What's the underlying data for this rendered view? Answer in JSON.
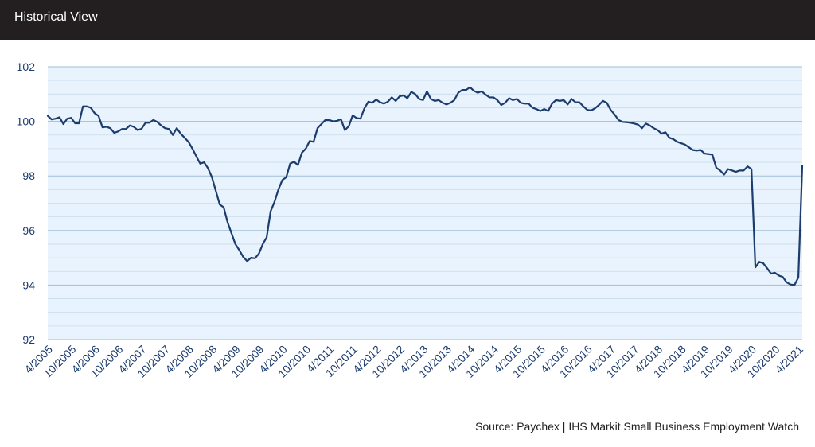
{
  "header": {
    "title": "Historical View"
  },
  "source": "Source: Paychex | IHS Markit Small Business Employment Watch",
  "colors": {
    "line": "#1c3c6e",
    "plot_bg": "#e9f3fd",
    "grid": "#a9c6db",
    "header_bg": "#231f20",
    "tick_text": "#1c3c6e"
  },
  "chart_data": {
    "type": "line",
    "title": "",
    "xlabel": "",
    "ylabel": "",
    "ylim": [
      92,
      102
    ],
    "yticks": [
      92,
      94,
      96,
      98,
      100,
      102
    ],
    "xtick_labels": [
      "4/2005",
      "10/2005",
      "4/2006",
      "10/2006",
      "4/2007",
      "10/2007",
      "4/2008",
      "10/2008",
      "4/2009",
      "10/2009",
      "4/2010",
      "10/2010",
      "4/2011",
      "10/2011",
      "4/2012",
      "10/2012",
      "4/2013",
      "10/2013",
      "4/2014",
      "10/2014",
      "4/2015",
      "10/2015",
      "4/2016",
      "10/2016",
      "4/2017",
      "10/2017",
      "4/2018",
      "10/2018",
      "4/2019",
      "10/2019",
      "4/2020",
      "10/2020",
      "4/2021"
    ],
    "grid": true,
    "x_start": "4/2005",
    "x_frequency": "monthly",
    "series": [
      {
        "values": [
          100.2,
          100.07,
          100.1,
          100.15,
          99.9,
          100.1,
          100.13,
          99.93,
          99.93,
          100.55,
          100.55,
          100.5,
          100.3,
          100.2,
          99.78,
          99.8,
          99.75,
          99.58,
          99.63,
          99.72,
          99.72,
          99.85,
          99.8,
          99.68,
          99.73,
          99.95,
          99.95,
          100.05,
          99.98,
          99.85,
          99.75,
          99.72,
          99.5,
          99.75,
          99.55,
          99.4,
          99.25,
          99.0,
          98.72,
          98.45,
          98.5,
          98.28,
          97.95,
          97.45,
          96.95,
          96.85,
          96.3,
          95.9,
          95.5,
          95.28,
          95.03,
          94.88,
          95.0,
          94.98,
          95.15,
          95.5,
          95.75,
          96.7,
          97.05,
          97.5,
          97.85,
          97.95,
          98.45,
          98.52,
          98.4,
          98.85,
          99.0,
          99.28,
          99.25,
          99.75,
          99.9,
          100.05,
          100.05,
          100.0,
          100.02,
          100.08,
          99.68,
          99.82,
          100.22,
          100.12,
          100.1,
          100.48,
          100.72,
          100.68,
          100.8,
          100.7,
          100.65,
          100.72,
          100.88,
          100.75,
          100.92,
          100.95,
          100.85,
          101.08,
          101.0,
          100.82,
          100.78,
          101.1,
          100.82,
          100.75,
          100.78,
          100.68,
          100.62,
          100.68,
          100.78,
          101.05,
          101.15,
          101.15,
          101.25,
          101.12,
          101.05,
          101.1,
          100.98,
          100.88,
          100.88,
          100.78,
          100.6,
          100.68,
          100.85,
          100.78,
          100.82,
          100.68,
          100.65,
          100.65,
          100.5,
          100.45,
          100.38,
          100.45,
          100.38,
          100.65,
          100.78,
          100.75,
          100.78,
          100.62,
          100.82,
          100.7,
          100.7,
          100.55,
          100.42,
          100.4,
          100.48,
          100.6,
          100.75,
          100.68,
          100.42,
          100.25,
          100.05,
          99.98,
          99.97,
          99.95,
          99.92,
          99.88,
          99.75,
          99.92,
          99.85,
          99.75,
          99.68,
          99.55,
          99.6,
          99.4,
          99.35,
          99.25,
          99.2,
          99.15,
          99.05,
          98.95,
          98.93,
          98.95,
          98.82,
          98.8,
          98.78,
          98.3,
          98.2,
          98.05,
          98.25,
          98.2,
          98.15,
          98.2,
          98.2,
          98.35,
          98.25,
          94.65,
          94.85,
          94.8,
          94.62,
          94.42,
          94.45,
          94.35,
          94.3,
          94.1,
          94.02,
          94.0,
          94.28,
          98.38
        ]
      }
    ]
  }
}
